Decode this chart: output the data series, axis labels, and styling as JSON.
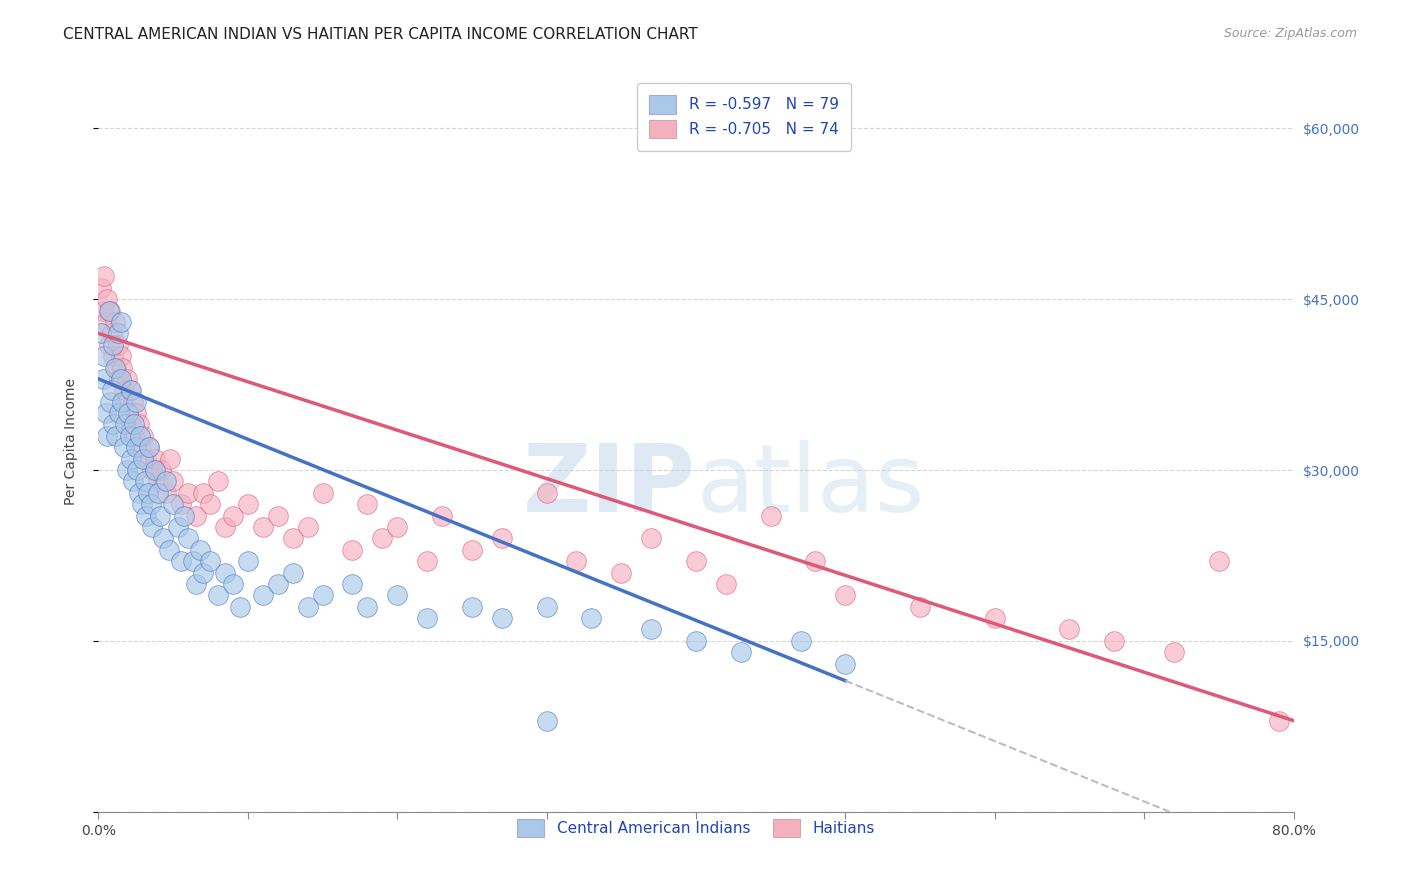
{
  "title": "CENTRAL AMERICAN INDIAN VS HAITIAN PER CAPITA INCOME CORRELATION CHART",
  "source": "Source: ZipAtlas.com",
  "ylabel": "Per Capita Income",
  "y_ticks": [
    0,
    15000,
    30000,
    45000,
    60000
  ],
  "y_tick_labels": [
    "",
    "$15,000",
    "$30,000",
    "$45,000",
    "$60,000"
  ],
  "xlim": [
    0.0,
    0.8
  ],
  "ylim": [
    0,
    65000
  ],
  "legend_r1": "R = -0.597   N = 79",
  "legend_r2": "R = -0.705   N = 74",
  "color_blue": "#aac8e8",
  "color_pink": "#f5b0c0",
  "line_blue": "#4472c4",
  "line_pink": "#e05878",
  "line_gray_dash": "#bbbbcc",
  "watermark_zip": "ZIP",
  "watermark_atlas": "atlas",
  "background": "#ffffff",
  "grid_color": "#cccccc",
  "blue_x": [
    0.002,
    0.003,
    0.004,
    0.005,
    0.006,
    0.007,
    0.008,
    0.009,
    0.01,
    0.01,
    0.011,
    0.012,
    0.013,
    0.014,
    0.015,
    0.015,
    0.016,
    0.017,
    0.018,
    0.019,
    0.02,
    0.021,
    0.022,
    0.022,
    0.023,
    0.024,
    0.025,
    0.025,
    0.026,
    0.027,
    0.028,
    0.029,
    0.03,
    0.031,
    0.032,
    0.033,
    0.034,
    0.035,
    0.036,
    0.038,
    0.04,
    0.041,
    0.043,
    0.045,
    0.047,
    0.05,
    0.053,
    0.055,
    0.057,
    0.06,
    0.063,
    0.065,
    0.068,
    0.07,
    0.075,
    0.08,
    0.085,
    0.09,
    0.095,
    0.1,
    0.11,
    0.12,
    0.13,
    0.14,
    0.15,
    0.17,
    0.18,
    0.2,
    0.22,
    0.25,
    0.27,
    0.3,
    0.33,
    0.37,
    0.4,
    0.43,
    0.47,
    0.5,
    0.3
  ],
  "blue_y": [
    42000,
    38000,
    40000,
    35000,
    33000,
    44000,
    36000,
    37000,
    41000,
    34000,
    39000,
    33000,
    42000,
    35000,
    43000,
    38000,
    36000,
    32000,
    34000,
    30000,
    35000,
    33000,
    31000,
    37000,
    29000,
    34000,
    32000,
    36000,
    30000,
    28000,
    33000,
    27000,
    31000,
    29000,
    26000,
    28000,
    32000,
    27000,
    25000,
    30000,
    28000,
    26000,
    24000,
    29000,
    23000,
    27000,
    25000,
    22000,
    26000,
    24000,
    22000,
    20000,
    23000,
    21000,
    22000,
    19000,
    21000,
    20000,
    18000,
    22000,
    19000,
    20000,
    21000,
    18000,
    19000,
    20000,
    18000,
    19000,
    17000,
    18000,
    17000,
    18000,
    17000,
    16000,
    15000,
    14000,
    15000,
    13000,
    8000
  ],
  "pink_x": [
    0.002,
    0.003,
    0.004,
    0.005,
    0.006,
    0.007,
    0.008,
    0.009,
    0.01,
    0.011,
    0.012,
    0.013,
    0.014,
    0.015,
    0.016,
    0.017,
    0.018,
    0.019,
    0.02,
    0.021,
    0.022,
    0.023,
    0.024,
    0.025,
    0.027,
    0.028,
    0.03,
    0.032,
    0.034,
    0.036,
    0.038,
    0.04,
    0.042,
    0.045,
    0.048,
    0.05,
    0.055,
    0.06,
    0.065,
    0.07,
    0.075,
    0.08,
    0.085,
    0.09,
    0.1,
    0.11,
    0.12,
    0.13,
    0.14,
    0.15,
    0.17,
    0.18,
    0.19,
    0.2,
    0.22,
    0.23,
    0.25,
    0.27,
    0.3,
    0.32,
    0.35,
    0.37,
    0.4,
    0.42,
    0.45,
    0.48,
    0.5,
    0.55,
    0.6,
    0.65,
    0.68,
    0.72,
    0.75,
    0.79
  ],
  "pink_y": [
    46000,
    44000,
    47000,
    43000,
    45000,
    41000,
    44000,
    42000,
    40000,
    43000,
    39000,
    41000,
    38000,
    40000,
    39000,
    37000,
    36000,
    38000,
    35000,
    37000,
    34000,
    36000,
    33000,
    35000,
    34000,
    32000,
    33000,
    31000,
    32000,
    30000,
    31000,
    29000,
    30000,
    28000,
    31000,
    29000,
    27000,
    28000,
    26000,
    28000,
    27000,
    29000,
    25000,
    26000,
    27000,
    25000,
    26000,
    24000,
    25000,
    28000,
    23000,
    27000,
    24000,
    25000,
    22000,
    26000,
    23000,
    24000,
    28000,
    22000,
    21000,
    24000,
    22000,
    20000,
    26000,
    22000,
    19000,
    18000,
    17000,
    16000,
    15000,
    14000,
    22000,
    8000
  ],
  "title_fontsize": 11,
  "source_fontsize": 9,
  "axis_label_fontsize": 10,
  "tick_fontsize": 10,
  "legend_fontsize": 11
}
